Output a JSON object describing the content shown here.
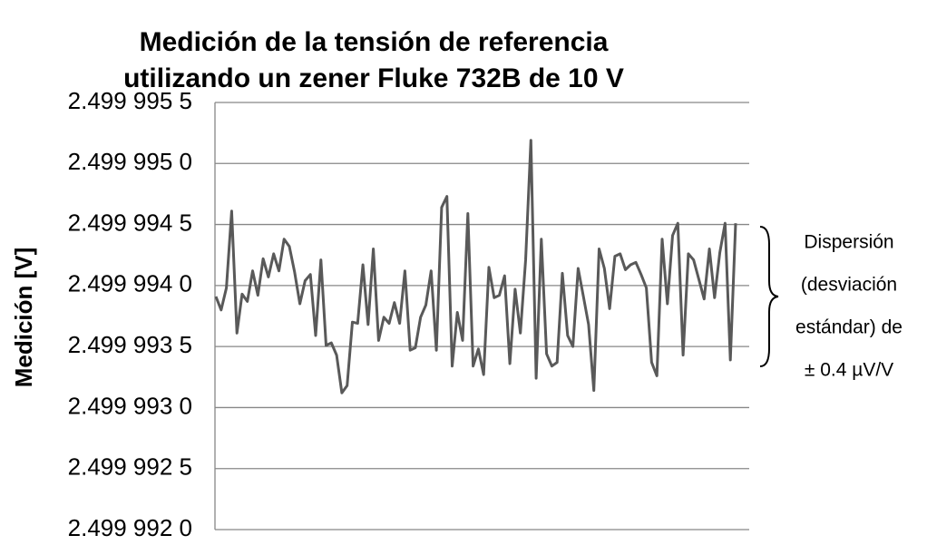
{
  "chart_data": {
    "type": "line",
    "title": [
      "Medición de la tensión de referencia",
      "utilizando un zener Fluke 732B de 10 V"
    ],
    "y_label": "Medición [V]",
    "annotation": [
      "Dispersión",
      "(desviación",
      "estándar) de",
      "± 0.4 µV/V"
    ],
    "color": "#595959",
    "grid": true,
    "ylim": [
      2.499992,
      2.4999955
    ],
    "yticks": [
      {
        "value": 2.499992,
        "label": "2.499 992 0"
      },
      {
        "value": 2.4999925,
        "label": "2.499 992 5"
      },
      {
        "value": 2.499993,
        "label": "2.499 993 0"
      },
      {
        "value": 2.4999935,
        "label": "2.499 993 5"
      },
      {
        "value": 2.499994,
        "label": "2.499 994 0"
      },
      {
        "value": 2.4999945,
        "label": "2.499 994 5"
      },
      {
        "value": 2.499995,
        "label": "2.499 995 0"
      },
      {
        "value": 2.4999955,
        "label": "2.499 995 5"
      }
    ],
    "values": [
      2.49999391,
      2.4999938,
      2.49999398,
      2.49999461,
      2.49999361,
      2.49999393,
      2.49999387,
      2.49999412,
      2.49999392,
      2.49999422,
      2.49999407,
      2.49999426,
      2.49999412,
      2.49999438,
      2.49999432,
      2.49999411,
      2.49999385,
      2.49999404,
      2.49999409,
      2.49999359,
      2.49999421,
      2.49999351,
      2.49999353,
      2.49999343,
      2.49999312,
      2.49999318,
      2.4999937,
      2.49999369,
      2.49999417,
      2.49999368,
      2.4999943,
      2.49999355,
      2.49999374,
      2.49999369,
      2.49999386,
      2.49999369,
      2.49999412,
      2.49999347,
      2.49999349,
      2.49999374,
      2.49999384,
      2.49999412,
      2.49999347,
      2.49999464,
      2.49999473,
      2.49999334,
      2.49999378,
      2.49999355,
      2.49999459,
      2.49999334,
      2.49999348,
      2.49999327,
      2.49999415,
      2.4999939,
      2.49999392,
      2.49999408,
      2.49999336,
      2.49999397,
      2.49999361,
      2.49999421,
      2.49999519,
      2.49999324,
      2.49999438,
      2.49999344,
      2.49999334,
      2.49999337,
      2.4999941,
      2.49999359,
      2.4999935,
      2.49999414,
      2.49999391,
      2.49999368,
      2.49999314,
      2.4999943,
      2.49999414,
      2.49999381,
      2.49999424,
      2.49999426,
      2.49999413,
      2.49999417,
      2.49999419,
      2.49999409,
      2.49999398,
      2.49999337,
      2.49999326,
      2.49999438,
      2.49999385,
      2.49999441,
      2.49999451,
      2.49999343,
      2.49999426,
      2.49999421,
      2.49999405,
      2.49999389,
      2.4999943,
      2.4999939,
      2.49999427,
      2.49999451,
      2.49999339,
      2.49999451
    ]
  }
}
